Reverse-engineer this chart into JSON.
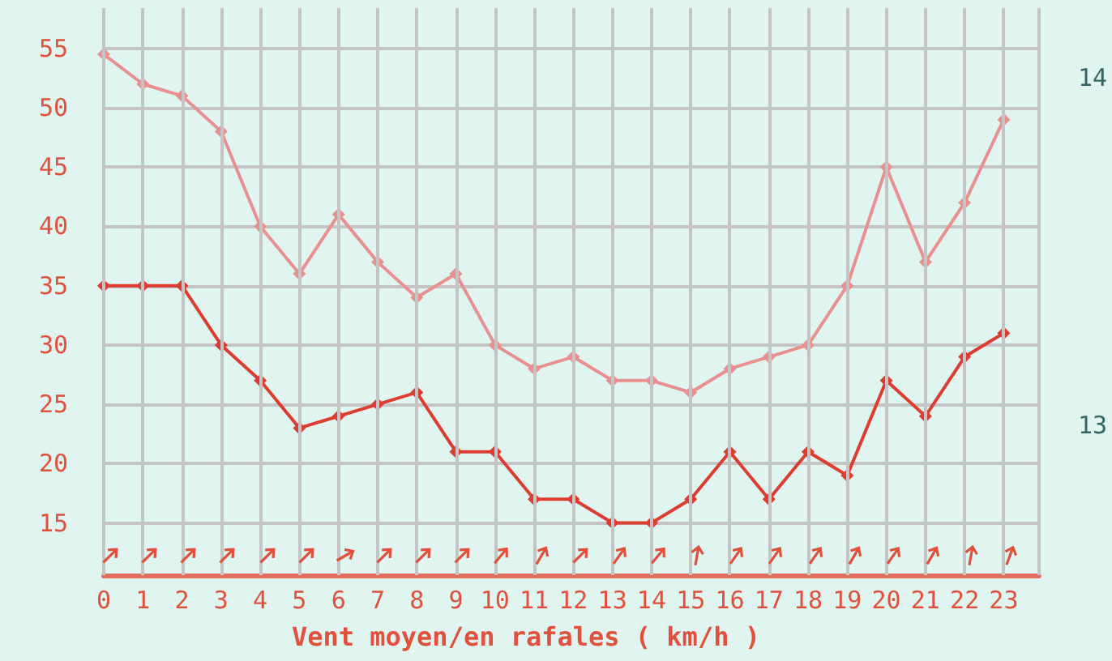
{
  "chart_data": {
    "type": "line",
    "xlabel": "Vent moyen/en rafales ( km/h )",
    "x": [
      0,
      1,
      2,
      3,
      4,
      5,
      6,
      7,
      8,
      9,
      10,
      11,
      12,
      13,
      14,
      15,
      16,
      17,
      18,
      19,
      20,
      21,
      22,
      23
    ],
    "series": [
      {
        "color": "#e89090",
        "values": [
          54.5,
          52,
          51,
          48,
          40,
          36,
          41,
          37,
          34,
          36,
          30,
          28,
          29,
          27,
          27,
          26,
          28,
          29,
          30,
          35,
          45,
          37,
          42,
          49
        ]
      },
      {
        "color": "#dd3c31",
        "values": [
          35,
          35,
          35,
          30,
          27,
          23,
          24,
          25,
          26,
          21,
          21,
          17,
          17,
          15,
          15,
          17,
          21,
          17,
          21,
          19,
          27,
          24,
          29,
          31
        ]
      }
    ],
    "xlim": [
      0,
      23.9
    ],
    "xticks": [
      0,
      1,
      2,
      3,
      4,
      5,
      6,
      7,
      8,
      9,
      10,
      11,
      12,
      13,
      14,
      15,
      16,
      17,
      18,
      19,
      20,
      21,
      22,
      23
    ],
    "ylim": [
      10.6,
      58.4
    ],
    "yticks": [
      15,
      20,
      25,
      30,
      35,
      40,
      45,
      50,
      55
    ],
    "y2lim": [
      12.57,
      14.2
    ],
    "y2ticks": [
      13,
      14
    ],
    "grid": true,
    "marker": "diamond",
    "line_style": "solid"
  }
}
